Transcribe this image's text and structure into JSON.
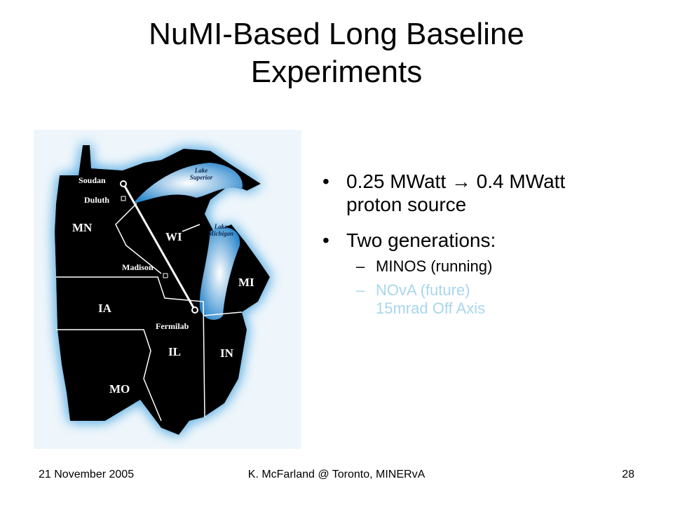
{
  "slide": {
    "title": "NuMI-Based Long Baseline Experiments",
    "bullets": [
      {
        "text": "0.25 MWatt → 0.4 MWatt proton source"
      },
      {
        "text": "Two generations:",
        "sub": [
          "MINOS (running)",
          "NOvA (future) 15mrad Off Axis"
        ]
      }
    ]
  },
  "map": {
    "labels": [
      "Soudan",
      "Duluth",
      "MN",
      "Lake Superior",
      "Lake Michigan",
      "WI",
      "Madison",
      "MI",
      "IA",
      "Fermilab",
      "IL",
      "IN",
      "MO"
    ]
  },
  "footer": {
    "date": "21 November 2005",
    "author": "K. McFarland @ Toronto, MINERvA",
    "page": "28"
  }
}
